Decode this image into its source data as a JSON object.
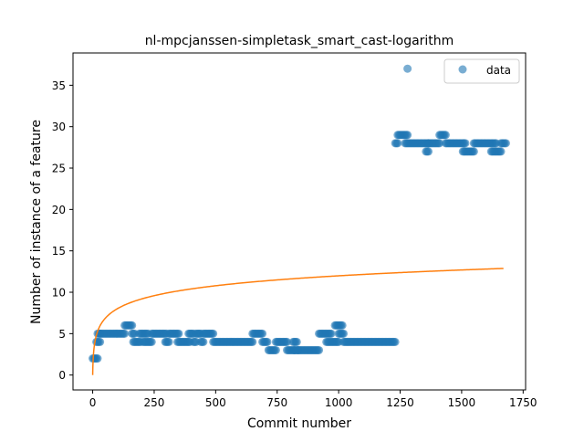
{
  "chart_data": {
    "type": "scatter",
    "title": "nl-mpcjanssen-simpletask_smart_cast-logarithm",
    "xlabel": "Commit number",
    "ylabel": "Number of instance of a feature",
    "xlim": [
      -80,
      1760
    ],
    "ylim": [
      -1.8,
      38.9
    ],
    "xticks": [
      0,
      250,
      500,
      750,
      1000,
      1250,
      1500,
      1750
    ],
    "yticks": [
      0,
      5,
      10,
      15,
      20,
      25,
      30,
      35
    ],
    "xtick_labels": [
      "0",
      "250",
      "500",
      "750",
      "1000",
      "1250",
      "1500",
      "1750"
    ],
    "ytick_labels": [
      "0",
      "5",
      "10",
      "15",
      "20",
      "25",
      "30",
      "35"
    ],
    "legend": {
      "position": "top-right",
      "entries": [
        "data"
      ]
    },
    "colors": {
      "data": "#1f77b4",
      "fit": "#ff7f0e"
    },
    "grid": false,
    "series": [
      {
        "name": "data",
        "kind": "scatter",
        "segments": [
          [
            0,
            20,
            2
          ],
          [
            15,
            30,
            4
          ],
          [
            20,
            30,
            5
          ],
          [
            30,
            130,
            5
          ],
          [
            130,
            160,
            6
          ],
          [
            160,
            170,
            5
          ],
          [
            165,
            195,
            4
          ],
          [
            190,
            225,
            5
          ],
          [
            205,
            240,
            4
          ],
          [
            240,
            300,
            5
          ],
          [
            295,
            310,
            4
          ],
          [
            310,
            350,
            5
          ],
          [
            345,
            395,
            4
          ],
          [
            390,
            410,
            5
          ],
          [
            410,
            420,
            4
          ],
          [
            420,
            440,
            5
          ],
          [
            440,
            450,
            4
          ],
          [
            450,
            490,
            5
          ],
          [
            490,
            650,
            4
          ],
          [
            650,
            690,
            5
          ],
          [
            690,
            710,
            4
          ],
          [
            715,
            745,
            3
          ],
          [
            745,
            790,
            4
          ],
          [
            790,
            820,
            3
          ],
          [
            815,
            830,
            4
          ],
          [
            835,
            845,
            3
          ],
          [
            820,
            835,
            3
          ],
          [
            850,
            920,
            3
          ],
          [
            920,
            970,
            5
          ],
          [
            950,
            1000,
            4
          ],
          [
            985,
            1015,
            6
          ],
          [
            1000,
            1020,
            5
          ],
          [
            1020,
            1230,
            4
          ],
          [
            1230,
            1240,
            28
          ],
          [
            1240,
            1280,
            29
          ],
          [
            1270,
            1365,
            28
          ],
          [
            1355,
            1365,
            27
          ],
          [
            1365,
            1410,
            28
          ],
          [
            1410,
            1435,
            29
          ],
          [
            1435,
            1515,
            28
          ],
          [
            1505,
            1550,
            27
          ],
          [
            1550,
            1640,
            28
          ],
          [
            1620,
            1660,
            27
          ],
          [
            1660,
            1680,
            28
          ]
        ],
        "outliers": [
          [
            1280,
            37
          ]
        ],
        "step": 5
      },
      {
        "name": "fit",
        "kind": "line",
        "model": "a*ln(x+1)+b",
        "a": 1.735,
        "b": 0.0,
        "x_range": [
          0,
          1670
        ]
      }
    ]
  }
}
